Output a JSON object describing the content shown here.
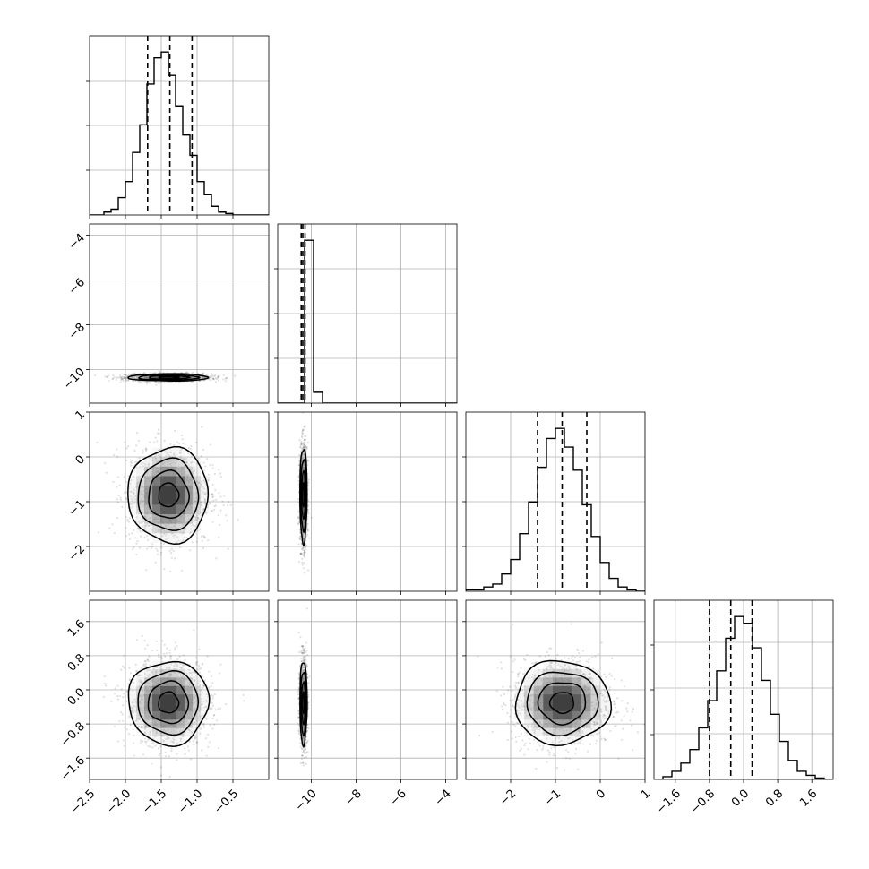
{
  "chart_data": {
    "type": "corner",
    "parameters": [
      {
        "range": [
          -2.5,
          0.0
        ],
        "ticks": [
          -2.5,
          -2.0,
          -1.5,
          -1.0,
          -0.5
        ],
        "tick_labels": [
          "−2.5",
          "−2.0",
          "−1.5",
          "−1.0",
          "−0.5"
        ],
        "mean": -1.4,
        "sigma": 0.28,
        "quantiles": [
          -1.69,
          -1.38,
          -1.07
        ],
        "hist_bins": [
          -2.5,
          0.0,
          25
        ],
        "hist_counts": [
          0,
          0,
          2,
          4,
          12,
          23,
          43,
          62,
          90,
          108,
          112,
          96,
          75,
          55,
          41,
          23,
          14,
          6,
          2,
          1,
          0,
          0,
          0,
          0,
          0
        ]
      },
      {
        "range": [
          -11.5,
          -3.5
        ],
        "ticks": [
          -10,
          -8,
          -6,
          -4
        ],
        "tick_labels": [
          "−10",
          "−8",
          "−6",
          "−4"
        ],
        "mean": -10.35,
        "sigma": 0.08,
        "quantiles": [
          -10.45,
          -10.38,
          -10.28
        ],
        "hist_bins": [
          -11.5,
          -3.5,
          20
        ],
        "hist_counts": [
          0,
          0,
          0,
          120,
          8,
          0,
          0,
          0,
          0,
          0,
          0,
          0,
          0,
          0,
          0,
          0,
          0,
          0,
          0,
          0
        ]
      },
      {
        "range": [
          -3.0,
          1.0
        ],
        "ticks": [
          -2,
          -1,
          0,
          1
        ],
        "tick_labels": [
          "−2",
          "−1",
          "0",
          "1"
        ],
        "mean": -0.85,
        "sigma": 0.53,
        "quantiles": [
          -1.4,
          -0.85,
          -0.3
        ],
        "hist_bins": [
          -3.0,
          1.0,
          20
        ],
        "hist_counts": [
          1,
          1,
          3,
          5,
          12,
          22,
          40,
          62,
          86,
          106,
          113,
          100,
          84,
          60,
          38,
          20,
          9,
          3,
          1,
          0
        ]
      },
      {
        "range": [
          -2.1,
          2.1
        ],
        "ticks": [
          -1.6,
          -0.8,
          0.0,
          0.8,
          1.6
        ],
        "tick_labels": [
          "−1.6",
          "−0.8",
          "0.0",
          "0.8",
          "1.6"
        ],
        "mean": -0.3,
        "sigma": 0.49,
        "quantiles": [
          -0.8,
          -0.3,
          0.2
        ],
        "hist_bins": [
          -2.1,
          2.1,
          20
        ],
        "hist_counts": [
          0,
          2,
          6,
          12,
          22,
          38,
          58,
          80,
          104,
          120,
          115,
          97,
          73,
          48,
          28,
          14,
          6,
          3,
          1,
          0
        ]
      }
    ],
    "contour_levels_sigma": [
      0.5,
      1.0,
      1.5,
      2.0
    ],
    "grid": true
  }
}
